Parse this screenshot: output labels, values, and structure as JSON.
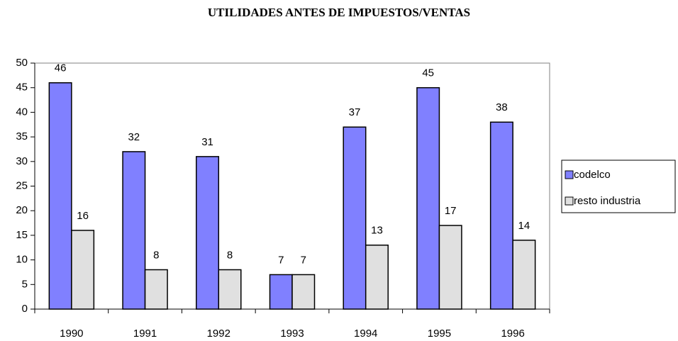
{
  "chart_data": {
    "type": "bar",
    "title": "UTILIDADES ANTES DE IMPUESTOS/VENTAS",
    "categories": [
      "1990",
      "1991",
      "1992",
      "1993",
      "1994",
      "1995",
      "1996"
    ],
    "series": [
      {
        "name": "codelco",
        "color": "#8080ff",
        "values": [
          46,
          32,
          31,
          7,
          37,
          45,
          38
        ]
      },
      {
        "name": "resto industria",
        "color": "#e0e0e0",
        "values": [
          16,
          8,
          8,
          7,
          13,
          17,
          14
        ]
      }
    ],
    "ylim": [
      0,
      50
    ],
    "yticks": [
      0,
      5,
      10,
      15,
      20,
      25,
      30,
      35,
      40,
      45,
      50
    ],
    "legend": "right"
  }
}
